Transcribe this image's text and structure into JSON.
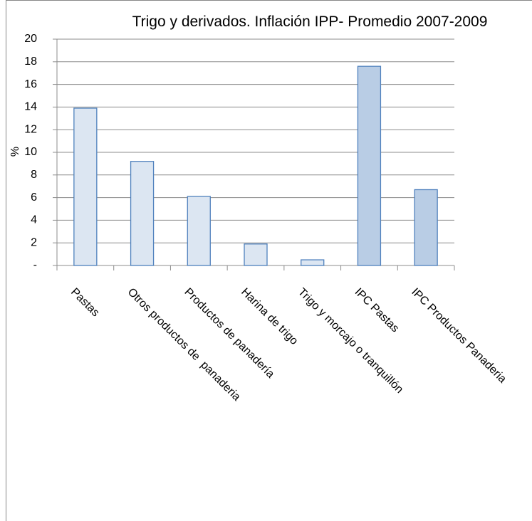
{
  "chart_data": {
    "type": "bar",
    "title": "Trigo y derivados. Inflación IPP- Promedio 2007-2009",
    "y_label": "%",
    "categories": [
      "Pastas",
      "Otros productos de  panaderia",
      "Productos de panadería",
      "Harina de trigo",
      "Trigo y morcajo o tranquillón",
      "IPC Pastas",
      "IPC Productos Panaderia"
    ],
    "values": [
      13.9,
      9.2,
      6.1,
      1.9,
      0.5,
      17.6,
      6.7
    ],
    "colors": [
      "#dce6f2",
      "#dce6f2",
      "#dce6f2",
      "#dce6f2",
      "#dce6f2",
      "#b9cde5",
      "#b9cde5"
    ],
    "ylim": [
      0,
      20
    ],
    "yticks": [
      {
        "value": 0,
        "label": "-"
      },
      2,
      4,
      6,
      8,
      10,
      12,
      14,
      16,
      18,
      20
    ],
    "grid": true
  }
}
